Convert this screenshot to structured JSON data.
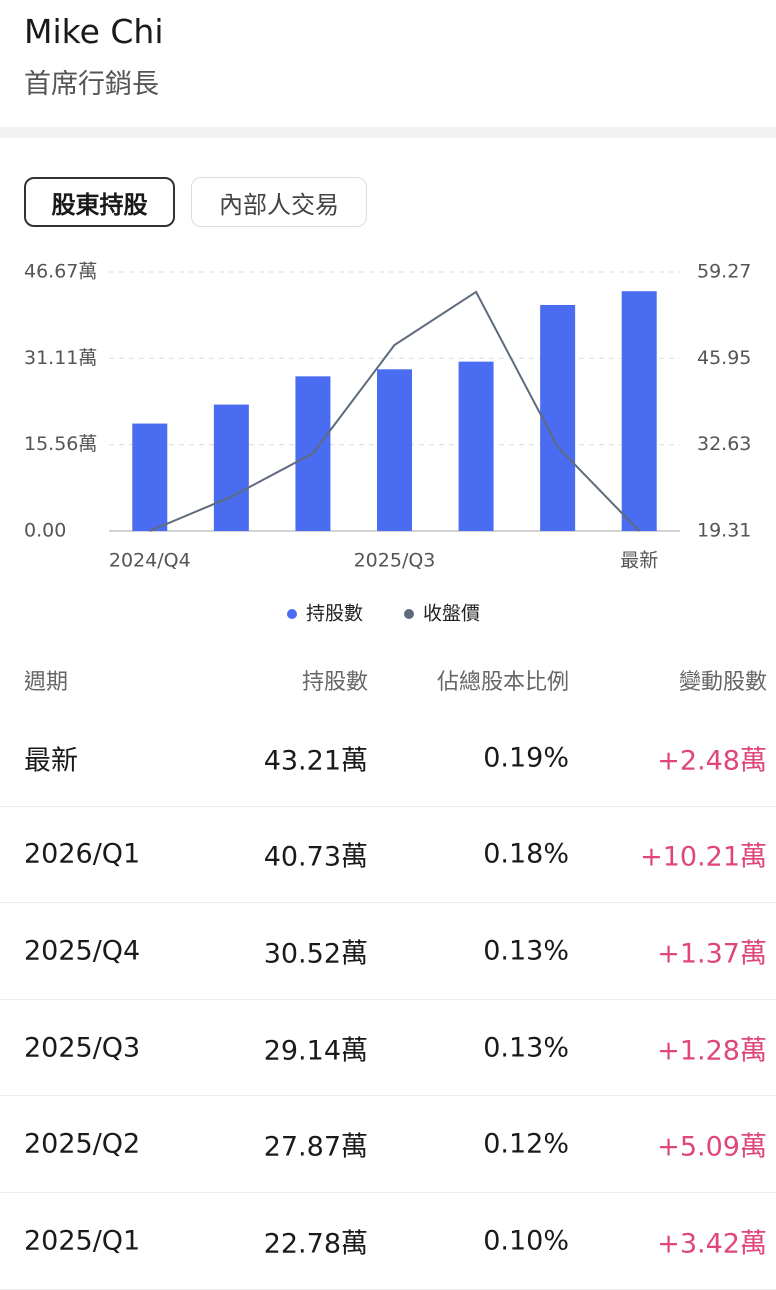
{
  "header": {
    "name": "Mike Chi",
    "title": "首席行銷長"
  },
  "tabs": [
    "股東持股",
    "內部人交易"
  ],
  "chart_data": {
    "type": "bar-line",
    "categories": [
      "2024/Q4",
      null,
      null,
      "2025/Q3",
      null,
      null,
      "最新"
    ],
    "series": [
      {
        "name": "持股數",
        "type": "bar",
        "color": "#4a6cf0",
        "values": [
          19.36,
          22.78,
          27.87,
          29.14,
          30.52,
          40.73,
          43.21
        ]
      },
      {
        "name": "收盤價",
        "type": "line",
        "axis": "y2",
        "color": "#5f6b7d",
        "values": [
          19.31,
          24.6,
          31.3,
          48.0,
          56.2,
          32.3,
          19.31
        ]
      }
    ],
    "ylim": [
      0,
      46.67
    ],
    "yticks": [
      {
        "value": 0,
        "label": "0.00"
      },
      {
        "value": 15.56,
        "label": "15.56萬"
      },
      {
        "value": 31.11,
        "label": "31.11萬"
      },
      {
        "value": 46.67,
        "label": "46.67萬"
      }
    ],
    "y2lim": [
      19.31,
      59.27
    ],
    "y2ticks": [
      19.31,
      32.63,
      45.95,
      59.27
    ],
    "grid": true,
    "legend": "bottom"
  },
  "table": {
    "columns": [
      "週期",
      "持股數",
      "佔總股本比例",
      "變動股數"
    ],
    "rows": [
      [
        "最新",
        "43.21萬",
        "0.19%",
        "+2.48萬"
      ],
      [
        "2026/Q1",
        "40.73萬",
        "0.18%",
        "+10.21萬"
      ],
      [
        "2025/Q4",
        "30.52萬",
        "0.13%",
        "+1.37萬"
      ],
      [
        "2025/Q3",
        "29.14萬",
        "0.13%",
        "+1.28萬"
      ],
      [
        "2025/Q2",
        "27.87萬",
        "0.12%",
        "+5.09萬"
      ],
      [
        "2025/Q1",
        "22.78萬",
        "0.10%",
        "+3.42萬"
      ]
    ]
  }
}
